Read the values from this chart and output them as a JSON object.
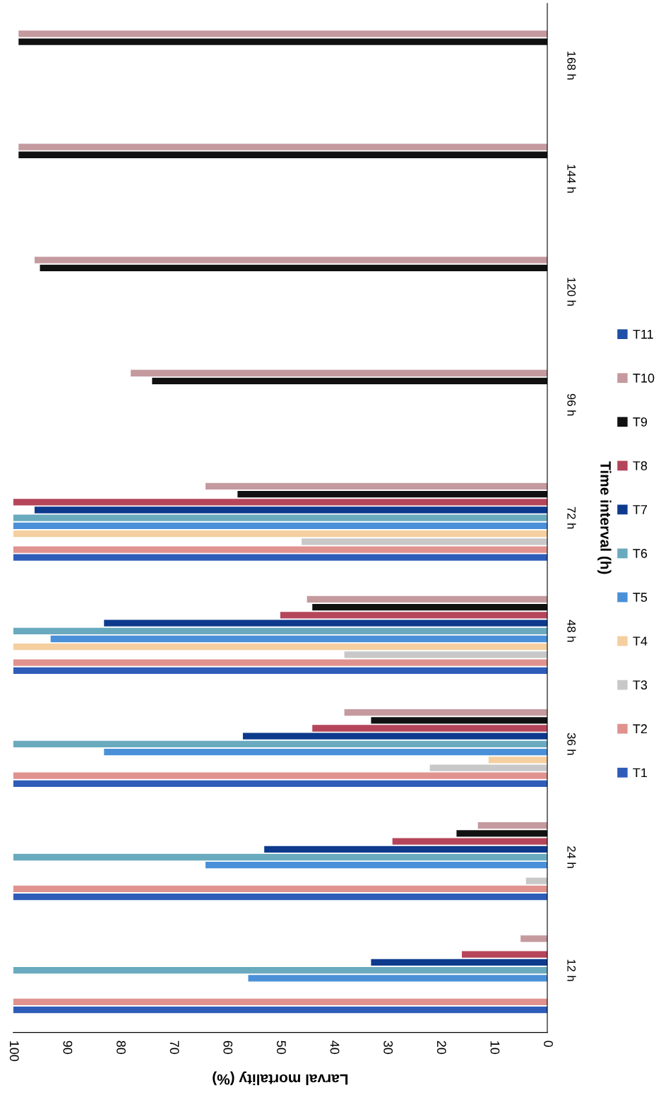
{
  "chart_data": {
    "type": "bar",
    "orientation": "horizontal",
    "xlabel": "Larval mortality (%)",
    "ylabel": "Time interval (h)",
    "categories": [
      "168 h",
      "144 h",
      "120 h",
      "96 h",
      "72 h",
      "48 h",
      "36 h",
      "24 h",
      "12 h"
    ],
    "xlim": [
      100,
      0
    ],
    "xticks": [
      0,
      10,
      20,
      30,
      40,
      50,
      60,
      70,
      80,
      90,
      100
    ],
    "grid": false,
    "legend": "right",
    "series": [
      {
        "name": "T1",
        "color": "#2e5cb8",
        "values": [
          null,
          null,
          null,
          null,
          100,
          100,
          100,
          100,
          100
        ]
      },
      {
        "name": "T2",
        "color": "#e0928f",
        "values": [
          null,
          null,
          null,
          null,
          100,
          100,
          100,
          100,
          100
        ]
      },
      {
        "name": "T3",
        "color": "#c8c8c8",
        "values": [
          null,
          null,
          null,
          null,
          46,
          38,
          22,
          4,
          null
        ]
      },
      {
        "name": "T4",
        "color": "#f5cfa0",
        "values": [
          null,
          null,
          null,
          null,
          100,
          100,
          11,
          null,
          null
        ]
      },
      {
        "name": "T5",
        "color": "#4a90d9",
        "values": [
          null,
          null,
          null,
          null,
          100,
          93,
          83,
          64,
          56
        ]
      },
      {
        "name": "T6",
        "color": "#6aaabf",
        "values": [
          null,
          null,
          null,
          null,
          100,
          100,
          100,
          100,
          100
        ]
      },
      {
        "name": "T7",
        "color": "#0d3a8c",
        "values": [
          null,
          null,
          null,
          null,
          96,
          83,
          57,
          53,
          33
        ]
      },
      {
        "name": "T8",
        "color": "#b5455a",
        "values": [
          null,
          null,
          null,
          null,
          100,
          50,
          44,
          29,
          16
        ]
      },
      {
        "name": "T9",
        "color": "#111111",
        "values": [
          99,
          99,
          95,
          74,
          58,
          44,
          33,
          17,
          null
        ]
      },
      {
        "name": "T10",
        "color": "#c49a9f",
        "values": [
          99,
          99,
          96,
          78,
          64,
          45,
          38,
          13,
          5
        ]
      },
      {
        "name": "T11",
        "color": "#1f4fa8",
        "values": [
          null,
          null,
          null,
          null,
          null,
          null,
          null,
          null,
          null
        ]
      }
    ]
  }
}
